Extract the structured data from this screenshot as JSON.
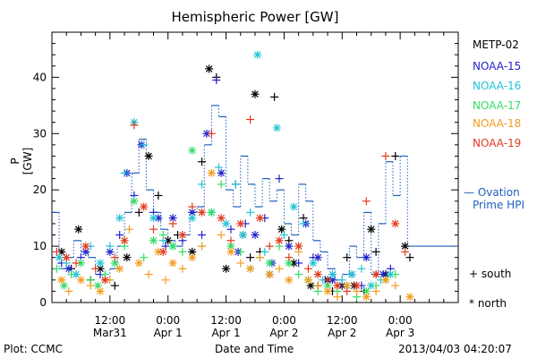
{
  "footer": {
    "plot_credit": "Plot: CCMC",
    "x_axis_label": "Date and Time",
    "timestamp": "2013/04/03 04:20:07"
  },
  "symbol_legend": {
    "south": "+ south",
    "north": "* north"
  },
  "chart_data": {
    "type": "scatter",
    "title": "Hemispheric Power [GW]",
    "ylabel": "P [GW]",
    "xlabel": "Date and Time",
    "ylim": [
      0,
      48
    ],
    "xlim_hours": [
      0,
      84
    ],
    "yticks": [
      0,
      10,
      20,
      30,
      40
    ],
    "xticks": [
      {
        "t": 12,
        "label": "12:00",
        "sublabel": "Mar31"
      },
      {
        "t": 24,
        "label": "0:00",
        "sublabel": "Apr 1"
      },
      {
        "t": 36,
        "label": "12:00",
        "sublabel": "Apr 1"
      },
      {
        "t": 48,
        "label": "0:00",
        "sublabel": "Apr 2"
      },
      {
        "t": 60,
        "label": "12:00",
        "sublabel": "Apr 2"
      },
      {
        "t": 72,
        "label": "0:00",
        "sublabel": "Apr 3"
      }
    ],
    "grid": false,
    "legend_position": "right",
    "ovation": {
      "name": "Ovation Prime HPI",
      "name_lines": [
        "— Ovation",
        "Prime HPI"
      ],
      "color": "#1f5fbf",
      "steps": [
        [
          0,
          16
        ],
        [
          1.5,
          6
        ],
        [
          3,
          8
        ],
        [
          4.5,
          11
        ],
        [
          6,
          9
        ],
        [
          7.5,
          8
        ],
        [
          9,
          5
        ],
        [
          10.5,
          4
        ],
        [
          12,
          6
        ],
        [
          13.5,
          10
        ],
        [
          15,
          16
        ],
        [
          16.5,
          23
        ],
        [
          18,
          29
        ],
        [
          19.5,
          20
        ],
        [
          21,
          16
        ],
        [
          22.5,
          13
        ],
        [
          24,
          11
        ],
        [
          25.5,
          10
        ],
        [
          27,
          12
        ],
        [
          28.5,
          16
        ],
        [
          30,
          17
        ],
        [
          31.5,
          28
        ],
        [
          33,
          35
        ],
        [
          34.5,
          33
        ],
        [
          36,
          20
        ],
        [
          37.5,
          17
        ],
        [
          39,
          26
        ],
        [
          40.5,
          21
        ],
        [
          42,
          17
        ],
        [
          43.5,
          22
        ],
        [
          45,
          18
        ],
        [
          46.5,
          20
        ],
        [
          48,
          14
        ],
        [
          49.5,
          12
        ],
        [
          51,
          21
        ],
        [
          52.5,
          18
        ],
        [
          54,
          11
        ],
        [
          55.5,
          9
        ],
        [
          57,
          6
        ],
        [
          58.5,
          4
        ],
        [
          60,
          5
        ],
        [
          61.5,
          10
        ],
        [
          63,
          8
        ],
        [
          64.5,
          16
        ],
        [
          66,
          5
        ],
        [
          67.5,
          14
        ],
        [
          69,
          25
        ],
        [
          70.5,
          19
        ],
        [
          72,
          26
        ],
        [
          73.5,
          10
        ]
      ]
    },
    "series": [
      {
        "name": "METP-02",
        "color": "#000000",
        "points": [
          [
            2,
            9
          ],
          [
            4,
            6
          ],
          [
            5.5,
            13
          ],
          [
            8,
            4
          ],
          [
            10,
            6
          ],
          [
            13,
            3
          ],
          [
            15.5,
            8
          ],
          [
            18,
            16
          ],
          [
            20,
            26
          ],
          [
            22,
            19
          ],
          [
            24,
            11
          ],
          [
            26,
            12
          ],
          [
            29,
            9
          ],
          [
            31,
            25
          ],
          [
            32.5,
            41.5
          ],
          [
            34,
            40
          ],
          [
            36,
            6
          ],
          [
            38,
            21
          ],
          [
            39.5,
            12
          ],
          [
            41,
            8
          ],
          [
            42,
            37
          ],
          [
            43,
            9
          ],
          [
            45,
            5
          ],
          [
            46,
            36.5
          ],
          [
            47.5,
            13
          ],
          [
            49,
            11
          ],
          [
            50,
            7
          ],
          [
            52,
            15
          ],
          [
            53.5,
            3
          ],
          [
            55,
            3
          ],
          [
            57,
            4
          ],
          [
            58,
            2
          ],
          [
            60,
            3
          ],
          [
            61,
            8
          ],
          [
            62.5,
            3
          ],
          [
            64.5,
            2
          ],
          [
            66,
            13
          ],
          [
            67,
            9
          ],
          [
            69,
            5
          ],
          [
            71,
            26
          ],
          [
            73,
            10
          ],
          [
            74,
            8
          ]
        ]
      },
      {
        "name": "NOAA-15",
        "color": "#2222cc",
        "points": [
          [
            2,
            7
          ],
          [
            3.5,
            6
          ],
          [
            6,
            8
          ],
          [
            7,
            9
          ],
          [
            10,
            5
          ],
          [
            12,
            9
          ],
          [
            14,
            12
          ],
          [
            15.5,
            23
          ],
          [
            17,
            19
          ],
          [
            18.5,
            28
          ],
          [
            21,
            16
          ],
          [
            22,
            15
          ],
          [
            23.5,
            10
          ],
          [
            25,
            15
          ],
          [
            27,
            11
          ],
          [
            29,
            16
          ],
          [
            31,
            12
          ],
          [
            32,
            30
          ],
          [
            34,
            39.5
          ],
          [
            35,
            23
          ],
          [
            37,
            13
          ],
          [
            38.5,
            9
          ],
          [
            40,
            14
          ],
          [
            42,
            12
          ],
          [
            44,
            15
          ],
          [
            45.5,
            7
          ],
          [
            47,
            22
          ],
          [
            49,
            10
          ],
          [
            51,
            7
          ],
          [
            52.5,
            14
          ],
          [
            54,
            8
          ],
          [
            55,
            8
          ],
          [
            56.5,
            4
          ],
          [
            58,
            4
          ],
          [
            60,
            3
          ],
          [
            62,
            5
          ],
          [
            64,
            3
          ],
          [
            65,
            8
          ],
          [
            67,
            5
          ],
          [
            68.5,
            5
          ],
          [
            70,
            6
          ]
        ]
      },
      {
        "name": "NOAA-16",
        "color": "#22c3d6",
        "points": [
          [
            1.5,
            8
          ],
          [
            3,
            7
          ],
          [
            5,
            5
          ],
          [
            8,
            10
          ],
          [
            10,
            7
          ],
          [
            12,
            10
          ],
          [
            14,
            15
          ],
          [
            15,
            23
          ],
          [
            17,
            32
          ],
          [
            19,
            28
          ],
          [
            21,
            15
          ],
          [
            23,
            11
          ],
          [
            25,
            10
          ],
          [
            27,
            12
          ],
          [
            29,
            15
          ],
          [
            31,
            21
          ],
          [
            33,
            16
          ],
          [
            34.5,
            24
          ],
          [
            36,
            14
          ],
          [
            38,
            21
          ],
          [
            39.5,
            12
          ],
          [
            41,
            16
          ],
          [
            42.5,
            44
          ],
          [
            44,
            9
          ],
          [
            46.5,
            31
          ],
          [
            48,
            12
          ],
          [
            50,
            17
          ],
          [
            52,
            14
          ],
          [
            54,
            7
          ],
          [
            56,
            4
          ],
          [
            58,
            5
          ],
          [
            60,
            4
          ],
          [
            62,
            5
          ],
          [
            64,
            6
          ],
          [
            66,
            3
          ],
          [
            68,
            4
          ],
          [
            70,
            5
          ]
        ]
      },
      {
        "name": "NOAA-17",
        "color": "#33dd66",
        "points": [
          [
            1,
            6
          ],
          [
            2.5,
            3
          ],
          [
            4,
            5
          ],
          [
            6,
            7
          ],
          [
            8,
            4
          ],
          [
            9.5,
            3
          ],
          [
            11,
            5
          ],
          [
            13,
            7
          ],
          [
            15,
            10
          ],
          [
            17,
            18
          ],
          [
            19,
            8
          ],
          [
            21,
            11
          ],
          [
            23,
            12
          ],
          [
            25,
            10
          ],
          [
            27,
            9
          ],
          [
            29,
            27
          ],
          [
            31,
            10
          ],
          [
            33,
            16
          ],
          [
            35,
            21
          ],
          [
            37,
            10
          ],
          [
            39,
            9
          ],
          [
            41,
            6
          ],
          [
            43,
            8
          ],
          [
            45,
            7
          ],
          [
            47,
            10
          ],
          [
            49,
            7
          ],
          [
            51,
            5
          ],
          [
            53,
            4
          ],
          [
            55,
            2
          ],
          [
            57,
            3
          ],
          [
            59,
            2
          ],
          [
            61,
            3
          ],
          [
            63,
            1
          ],
          [
            65,
            2
          ],
          [
            67,
            3
          ],
          [
            69,
            4
          ],
          [
            71,
            5
          ]
        ]
      },
      {
        "name": "NOAA-18",
        "color": "#f39c1f",
        "points": [
          [
            2,
            4
          ],
          [
            3.5,
            2
          ],
          [
            6,
            4
          ],
          [
            8,
            3
          ],
          [
            10,
            2
          ],
          [
            12,
            4
          ],
          [
            14,
            6
          ],
          [
            16,
            13
          ],
          [
            18,
            7
          ],
          [
            20,
            5
          ],
          [
            22,
            9
          ],
          [
            23.5,
            4
          ],
          [
            25,
            7
          ],
          [
            27,
            6
          ],
          [
            29,
            8
          ],
          [
            31,
            10
          ],
          [
            33,
            23
          ],
          [
            35,
            12
          ],
          [
            37,
            9
          ],
          [
            39,
            7
          ],
          [
            41,
            6
          ],
          [
            43,
            8
          ],
          [
            45,
            5
          ],
          [
            47,
            6
          ],
          [
            49,
            4
          ],
          [
            51,
            9
          ],
          [
            53,
            4
          ],
          [
            55,
            3
          ],
          [
            57,
            2
          ],
          [
            59,
            1
          ],
          [
            61,
            3
          ],
          [
            63,
            2
          ],
          [
            65,
            1
          ],
          [
            67,
            2
          ],
          [
            69,
            4
          ],
          [
            71,
            3
          ],
          [
            74,
            1
          ]
        ]
      },
      {
        "name": "NOAA-19",
        "color": "#e03b1f",
        "points": [
          [
            1,
            9
          ],
          [
            3,
            8
          ],
          [
            5,
            7
          ],
          [
            7,
            10
          ],
          [
            9,
            6
          ],
          [
            11,
            4
          ],
          [
            13,
            8
          ],
          [
            15,
            11
          ],
          [
            17,
            31.5
          ],
          [
            19,
            17
          ],
          [
            21,
            13
          ],
          [
            23,
            9
          ],
          [
            25,
            14
          ],
          [
            27,
            12
          ],
          [
            29,
            17
          ],
          [
            31,
            16
          ],
          [
            33,
            30
          ],
          [
            35,
            15
          ],
          [
            37,
            11
          ],
          [
            39,
            14
          ],
          [
            41,
            32.5
          ],
          [
            43,
            15
          ],
          [
            45,
            10
          ],
          [
            47,
            11
          ],
          [
            49,
            8
          ],
          [
            51,
            10
          ],
          [
            53,
            6
          ],
          [
            55,
            5
          ],
          [
            57,
            4
          ],
          [
            59,
            3
          ],
          [
            61,
            2
          ],
          [
            63,
            3
          ],
          [
            65,
            18
          ],
          [
            67,
            5
          ],
          [
            69,
            26
          ],
          [
            71,
            14
          ],
          [
            73,
            9
          ]
        ]
      }
    ],
    "legend_entries": [
      "METP-02",
      "NOAA-15",
      "NOAA-16",
      "NOAA-17",
      "NOAA-18",
      "NOAA-19"
    ]
  }
}
